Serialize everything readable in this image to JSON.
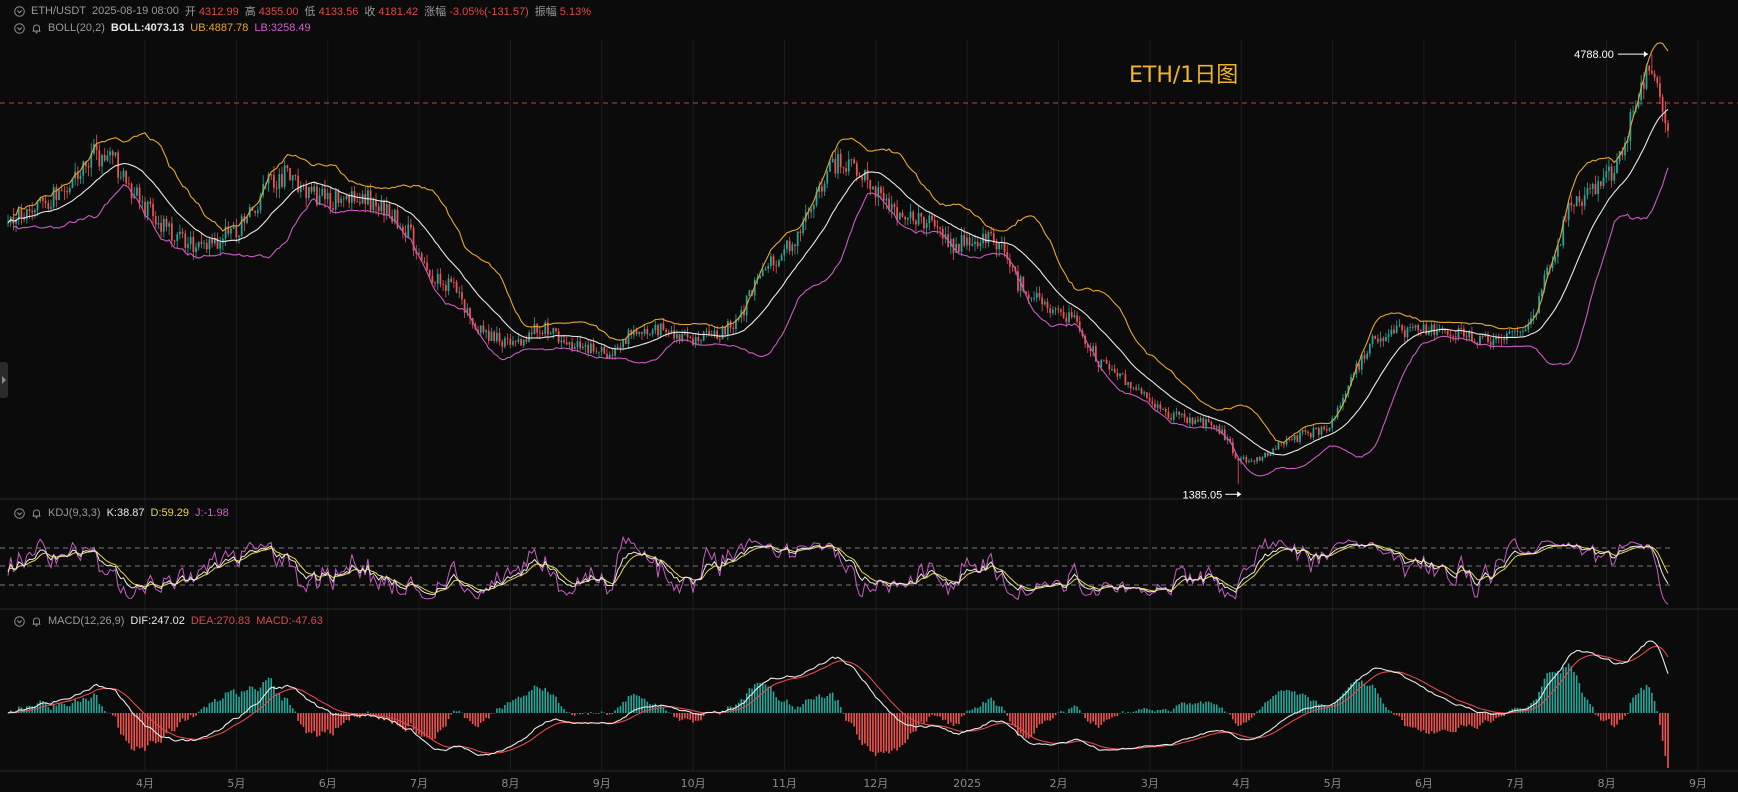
{
  "header": {
    "symbol": "ETH/USDT",
    "datetime": "2025-08-19 08:00",
    "open_label": "开",
    "open": "4312.99",
    "high_label": "高",
    "high": "4355.00",
    "low_label": "低",
    "low": "4133.56",
    "close_label": "收",
    "close": "4181.42",
    "change_label": "涨幅",
    "change": "-3.05%(-131.57)",
    "amplitude_label": "振幅",
    "amplitude": "5.13%"
  },
  "boll": {
    "name": "BOLL(20,2)",
    "mid_label": "BOLL:",
    "mid": "4073.13",
    "ub_label": "UB:",
    "ub": "4887.78",
    "lb_label": "LB:",
    "lb": "3258.49"
  },
  "kdj": {
    "name": "KDJ(9,3,3)",
    "k_label": "K:",
    "k": "38.87",
    "d_label": "D:",
    "d": "59.29",
    "j_label": "J:",
    "j": "-1.98"
  },
  "macd": {
    "name": "MACD(12,26,9)",
    "dif_label": "DIF:",
    "dif": "247.02",
    "dea_label": "DEA:",
    "dea": "270.83",
    "hist_label": "MACD:",
    "hist": "-47.63"
  },
  "title": "ETH/1日图",
  "colors": {
    "up": "#26a69a",
    "down": "#ef5350",
    "boll_mid": "#e8e8e8",
    "boll_ub": "#e7a530",
    "boll_lb": "#c95bc0",
    "k": "#e8e8e8",
    "d": "#e6d84a",
    "j": "#c95bc0",
    "dif": "#e8e8e8",
    "dea": "#e0484b",
    "title": "#f0b429"
  },
  "chart_data": {
    "type": "candlestick",
    "interval": "1d",
    "annotations": [
      {
        "label": "4788.00",
        "value": 4788.0
      },
      {
        "label": "1385.05",
        "value": 1385.05
      }
    ],
    "x_tick_labels": [
      "4月",
      "5月",
      "6月",
      "7月",
      "8月",
      "9月",
      "10月",
      "11月",
      "12月",
      "2025",
      "2月",
      "3月",
      "4月",
      "5月",
      "6月",
      "7月",
      "8月",
      "9月"
    ],
    "ylim": [
      1300,
      4900
    ],
    "price_keypoints": [
      [
        0,
        3450
      ],
      [
        18,
        3680
      ],
      [
        32,
        4010
      ],
      [
        40,
        3930
      ],
      [
        50,
        3590
      ],
      [
        62,
        3340
      ],
      [
        74,
        3260
      ],
      [
        88,
        3450
      ],
      [
        96,
        3740
      ],
      [
        104,
        3840
      ],
      [
        114,
        3680
      ],
      [
        124,
        3620
      ],
      [
        134,
        3640
      ],
      [
        142,
        3560
      ],
      [
        150,
        3350
      ],
      [
        156,
        3060
      ],
      [
        166,
        2920
      ],
      [
        176,
        2600
      ],
      [
        188,
        2480
      ],
      [
        198,
        2640
      ],
      [
        210,
        2500
      ],
      [
        222,
        2410
      ],
      [
        234,
        2600
      ],
      [
        242,
        2620
      ],
      [
        254,
        2520
      ],
      [
        264,
        2580
      ],
      [
        272,
        2670
      ],
      [
        280,
        3050
      ],
      [
        292,
        3300
      ],
      [
        300,
        3640
      ],
      [
        308,
        3920
      ],
      [
        316,
        3880
      ],
      [
        326,
        3620
      ],
      [
        336,
        3480
      ],
      [
        344,
        3430
      ],
      [
        352,
        3260
      ],
      [
        360,
        3340
      ],
      [
        370,
        3280
      ],
      [
        376,
        2980
      ],
      [
        386,
        2820
      ],
      [
        396,
        2700
      ],
      [
        406,
        2360
      ],
      [
        416,
        2210
      ],
      [
        424,
        2060
      ],
      [
        434,
        1920
      ],
      [
        444,
        1890
      ],
      [
        452,
        1800
      ],
      [
        458,
        1560
      ],
      [
        466,
        1600
      ],
      [
        476,
        1720
      ],
      [
        484,
        1790
      ],
      [
        492,
        1820
      ],
      [
        500,
        2220
      ],
      [
        508,
        2520
      ],
      [
        516,
        2580
      ],
      [
        526,
        2620
      ],
      [
        536,
        2610
      ],
      [
        546,
        2520
      ],
      [
        556,
        2500
      ],
      [
        566,
        2620
      ],
      [
        574,
        3100
      ],
      [
        582,
        3600
      ],
      [
        590,
        3700
      ],
      [
        598,
        3860
      ],
      [
        606,
        4380
      ],
      [
        612,
        4720
      ],
      [
        618,
        4181
      ]
    ],
    "series": [
      {
        "name": "BOLL",
        "value": 4073.13
      },
      {
        "name": "UB",
        "value": 4887.78
      },
      {
        "name": "LB",
        "value": 3258.49
      },
      {
        "name": "K",
        "value": 38.87
      },
      {
        "name": "D",
        "value": 59.29
      },
      {
        "name": "J",
        "value": -1.98
      },
      {
        "name": "DIF",
        "value": 247.02
      },
      {
        "name": "DEA",
        "value": 270.83
      },
      {
        "name": "MACD",
        "value": -47.63
      }
    ]
  }
}
